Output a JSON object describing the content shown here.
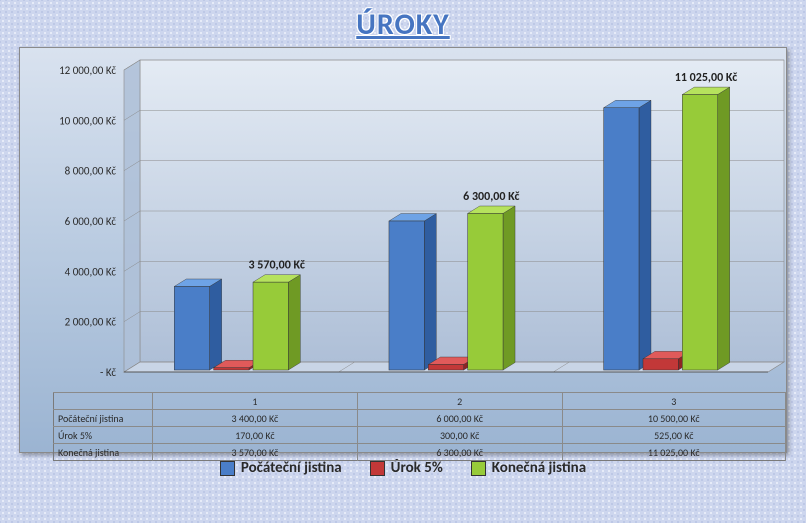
{
  "title": "ÚROKY",
  "title_color": "#4675c1",
  "title_fontsize": 30,
  "chart": {
    "type": "bar",
    "categories": [
      "1",
      "2",
      "3"
    ],
    "series": [
      {
        "name": "Počáteční jistina",
        "color_top": "#6ea3e6",
        "color_front": "#4a7ec8",
        "color_side": "#2f5da0",
        "values": [
          3400,
          6000,
          10500
        ]
      },
      {
        "name": "Úrok 5%",
        "color_top": "#e05a5a",
        "color_front": "#c23838",
        "color_side": "#8e2424",
        "values": [
          170,
          300,
          525
        ]
      },
      {
        "name": "Konečná jistina",
        "color_top": "#b6e25d",
        "color_front": "#97cb39",
        "color_side": "#6f9a24",
        "values": [
          3570,
          6300,
          11025
        ]
      }
    ],
    "value_labels": [
      {
        "group": 0,
        "series": 2,
        "text": "3 570,00 Kč"
      },
      {
        "group": 1,
        "series": 2,
        "text": "6 300,00 Kč"
      },
      {
        "group": 2,
        "series": 2,
        "text": "11 025,00 Kč"
      }
    ],
    "ylim": [
      0,
      12000
    ],
    "ytick_step": 2000,
    "ytick_labels": [
      "-   Kč",
      "2 000,00 Kč",
      "4 000,00 Kč",
      "6 000,00 Kč",
      "8 000,00 Kč",
      "10 000,00 Kč",
      "12 000,00 Kč"
    ],
    "grid_color": "#8a8a8a",
    "wall_top_color": "#e4ebf4",
    "wall_bottom_color": "#aebfd7",
    "floor_color": "#c9d5e6",
    "axis_fontsize": 11,
    "label_fontsize": 12,
    "bar_depth": 12,
    "group_gap_ratio": 0.55
  },
  "data_table": {
    "header": [
      "",
      "1",
      "2",
      "3"
    ],
    "rows": [
      {
        "label": "Počáteční jistina",
        "cells": [
          "3 400,00 Kč",
          "6 000,00 Kč",
          "10 500,00 Kč"
        ]
      },
      {
        "label": "Úrok 5%",
        "cells": [
          "170,00 Kč",
          "300,00 Kč",
          "525,00 Kč"
        ]
      },
      {
        "label": "Konečná jistina",
        "cells": [
          "3 570,00 Kč",
          "6 300,00 Kč",
          "11 025,00 Kč"
        ]
      }
    ]
  },
  "legend": {
    "items": [
      {
        "label": "Počáteční jistina",
        "color": "#4a7ec8"
      },
      {
        "label": "Úrok 5%",
        "color": "#c23838"
      },
      {
        "label": "Konečná jistina",
        "color": "#97cb39"
      }
    ],
    "fontsize": 15
  }
}
